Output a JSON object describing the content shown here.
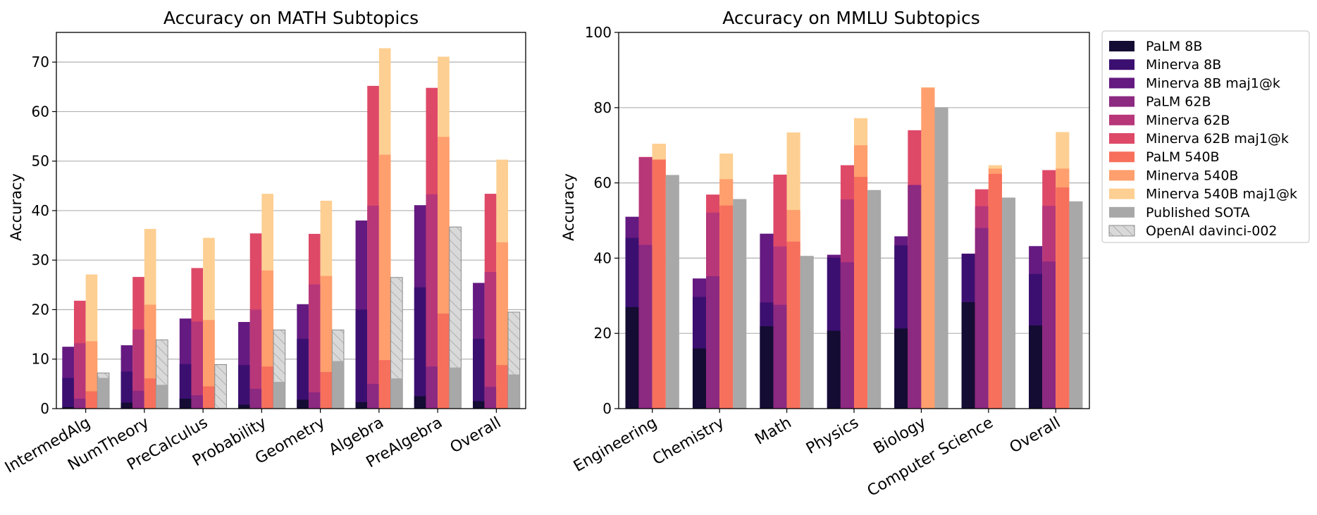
{
  "colors": {
    "palm_8b": "#140c33",
    "minerva_8b": "#3b0f70",
    "minerva_8b_maj": "#641a80",
    "palm_62b": "#8c2981",
    "minerva_62b": "#b73779",
    "minerva_62b_maj": "#de4968",
    "palm_540b": "#f7705c",
    "minerva_540b": "#fe9f6d",
    "minerva_540b_maj": "#fecf92",
    "published_sota": "#a8a8a8",
    "openai": "#d9d9d9"
  },
  "legend": {
    "placement": "outside-right",
    "entries": [
      {
        "label": "PaLM 8B",
        "key": "palm_8b"
      },
      {
        "label": "Minerva 8B",
        "key": "minerva_8b"
      },
      {
        "label": "Minerva 8B maj1@k",
        "key": "minerva_8b_maj"
      },
      {
        "label": "PaLM 62B",
        "key": "palm_62b"
      },
      {
        "label": "Minerva 62B",
        "key": "minerva_62b"
      },
      {
        "label": "Minerva 62B maj1@k",
        "key": "minerva_62b_maj"
      },
      {
        "label": "PaLM 540B",
        "key": "palm_540b"
      },
      {
        "label": "Minerva 540B",
        "key": "minerva_540b"
      },
      {
        "label": "Minerva 540B maj1@k",
        "key": "minerva_540b_maj"
      },
      {
        "label": "Published SOTA",
        "key": "published_sota"
      },
      {
        "label": "OpenAI davinci-002",
        "key": "openai",
        "hatched": true
      }
    ]
  },
  "chart_data": [
    {
      "type": "bar",
      "title": "Accuracy on MATH Subtopics",
      "ylabel": "Accuracy",
      "ylim": [
        0,
        76
      ],
      "yticks": [
        0,
        10,
        20,
        30,
        40,
        50,
        60,
        70
      ],
      "grid": true,
      "categories": [
        "IntermedAlg",
        "NumTheory",
        "PreCalculus",
        "Probability",
        "Geometry",
        "Algebra",
        "PreAlgebra",
        "Overall"
      ],
      "groups": [
        {
          "name": "8B",
          "stacks": [
            {
              "series": "PaLM 8B",
              "values": [
                0.3,
                1.2,
                2.0,
                0.8,
                1.8,
                1.3,
                2.5,
                1.5
              ]
            },
            {
              "series": "Minerva 8B",
              "values": [
                6.2,
                7.5,
                9.0,
                8.8,
                14.1,
                20.0,
                24.5,
                14.1
              ]
            },
            {
              "series": "Minerva 8B maj1@k",
              "values": [
                12.5,
                12.8,
                18.2,
                17.5,
                21.1,
                38.0,
                41.1,
                25.4
              ]
            }
          ]
        },
        {
          "name": "62B",
          "stacks": [
            {
              "series": "PaLM 62B",
              "values": [
                2.0,
                3.6,
                2.7,
                4.0,
                3.3,
                5.0,
                8.5,
                4.4
              ]
            },
            {
              "series": "Minerva 62B",
              "values": [
                13.2,
                16.0,
                17.6,
                20.0,
                25.1,
                41.0,
                43.3,
                27.6
              ]
            },
            {
              "series": "Minerva 62B maj1@k",
              "values": [
                21.8,
                26.6,
                28.4,
                35.4,
                35.3,
                65.2,
                64.8,
                43.4
              ]
            }
          ]
        },
        {
          "name": "540B",
          "stacks": [
            {
              "series": "PaLM 540B",
              "values": [
                3.5,
                6.1,
                4.5,
                8.5,
                7.4,
                9.8,
                19.2,
                8.8
              ]
            },
            {
              "series": "Minerva 540B",
              "values": [
                13.6,
                21.0,
                17.9,
                27.9,
                26.8,
                51.3,
                54.9,
                33.6
              ]
            },
            {
              "series": "Minerva 540B maj1@k",
              "values": [
                27.1,
                36.3,
                34.5,
                43.4,
                42.0,
                72.8,
                71.1,
                50.3
              ]
            }
          ]
        },
        {
          "name": "sota",
          "stacks": [
            {
              "series": "Published SOTA",
              "values": [
                6.2,
                4.8,
                8.9,
                5.4,
                9.6,
                6.1,
                8.3,
                6.9
              ]
            },
            {
              "series": "OpenAI davinci-002",
              "values": [
                7.2,
                13.9,
                8.9,
                15.9,
                15.9,
                26.5,
                36.7,
                19.5
              ],
              "hatched": true
            }
          ]
        }
      ]
    },
    {
      "type": "bar",
      "title": "Accuracy on MMLU Subtopics",
      "ylabel": "Accuracy",
      "ylim": [
        0,
        100
      ],
      "yticks": [
        0,
        20,
        40,
        60,
        80,
        100
      ],
      "grid": true,
      "categories": [
        "Engineering",
        "Chemistry",
        "Math",
        "Physics",
        "Biology",
        "Computer Science",
        "Overall"
      ],
      "groups": [
        {
          "name": "8B",
          "stacks": [
            {
              "series": "PaLM 8B",
              "values": [
                27.0,
                16.0,
                21.9,
                20.7,
                21.3,
                28.3,
                22.1
              ]
            },
            {
              "series": "Minerva 8B",
              "values": [
                45.4,
                29.7,
                28.2,
                40.1,
                43.4,
                41.1,
                35.8
              ]
            },
            {
              "series": "Minerva 8B maj1@k",
              "values": [
                51.0,
                34.6,
                46.5,
                40.9,
                45.8,
                41.2,
                43.2
              ]
            }
          ]
        },
        {
          "name": "62B",
          "stacks": [
            {
              "series": "PaLM 62B",
              "values": [
                43.5,
                35.2,
                27.6,
                38.9,
                59.4,
                48.0,
                39.1
              ]
            },
            {
              "series": "Minerva 62B",
              "values": [
                66.8,
                52.1,
                43.1,
                55.6,
                59.5,
                53.8,
                53.9
              ]
            },
            {
              "series": "Minerva 62B maj1@k",
              "values": [
                66.9,
                56.9,
                62.2,
                64.7,
                74.0,
                58.3,
                63.4
              ]
            }
          ]
        },
        {
          "name": "540B",
          "stacks": [
            {
              "series": "PaLM 540B",
              "values": [
                66.2,
                54.0,
                44.4,
                61.6,
                85.4,
                62.4,
                58.8
              ]
            },
            {
              "series": "Minerva 540B",
              "values": [
                70.4,
                61.0,
                52.8,
                70.0,
                85.3,
                63.8,
                63.8
              ]
            },
            {
              "series": "Minerva 540B maj1@k",
              "values": [
                70.4,
                67.8,
                73.4,
                77.2,
                85.4,
                64.7,
                73.5
              ]
            }
          ]
        },
        {
          "name": "sota",
          "stacks": [
            {
              "series": "Published SOTA",
              "values": [
                62.1,
                55.7,
                40.6,
                58.1,
                80.1,
                56.1,
                55.1
              ]
            }
          ]
        }
      ]
    }
  ]
}
